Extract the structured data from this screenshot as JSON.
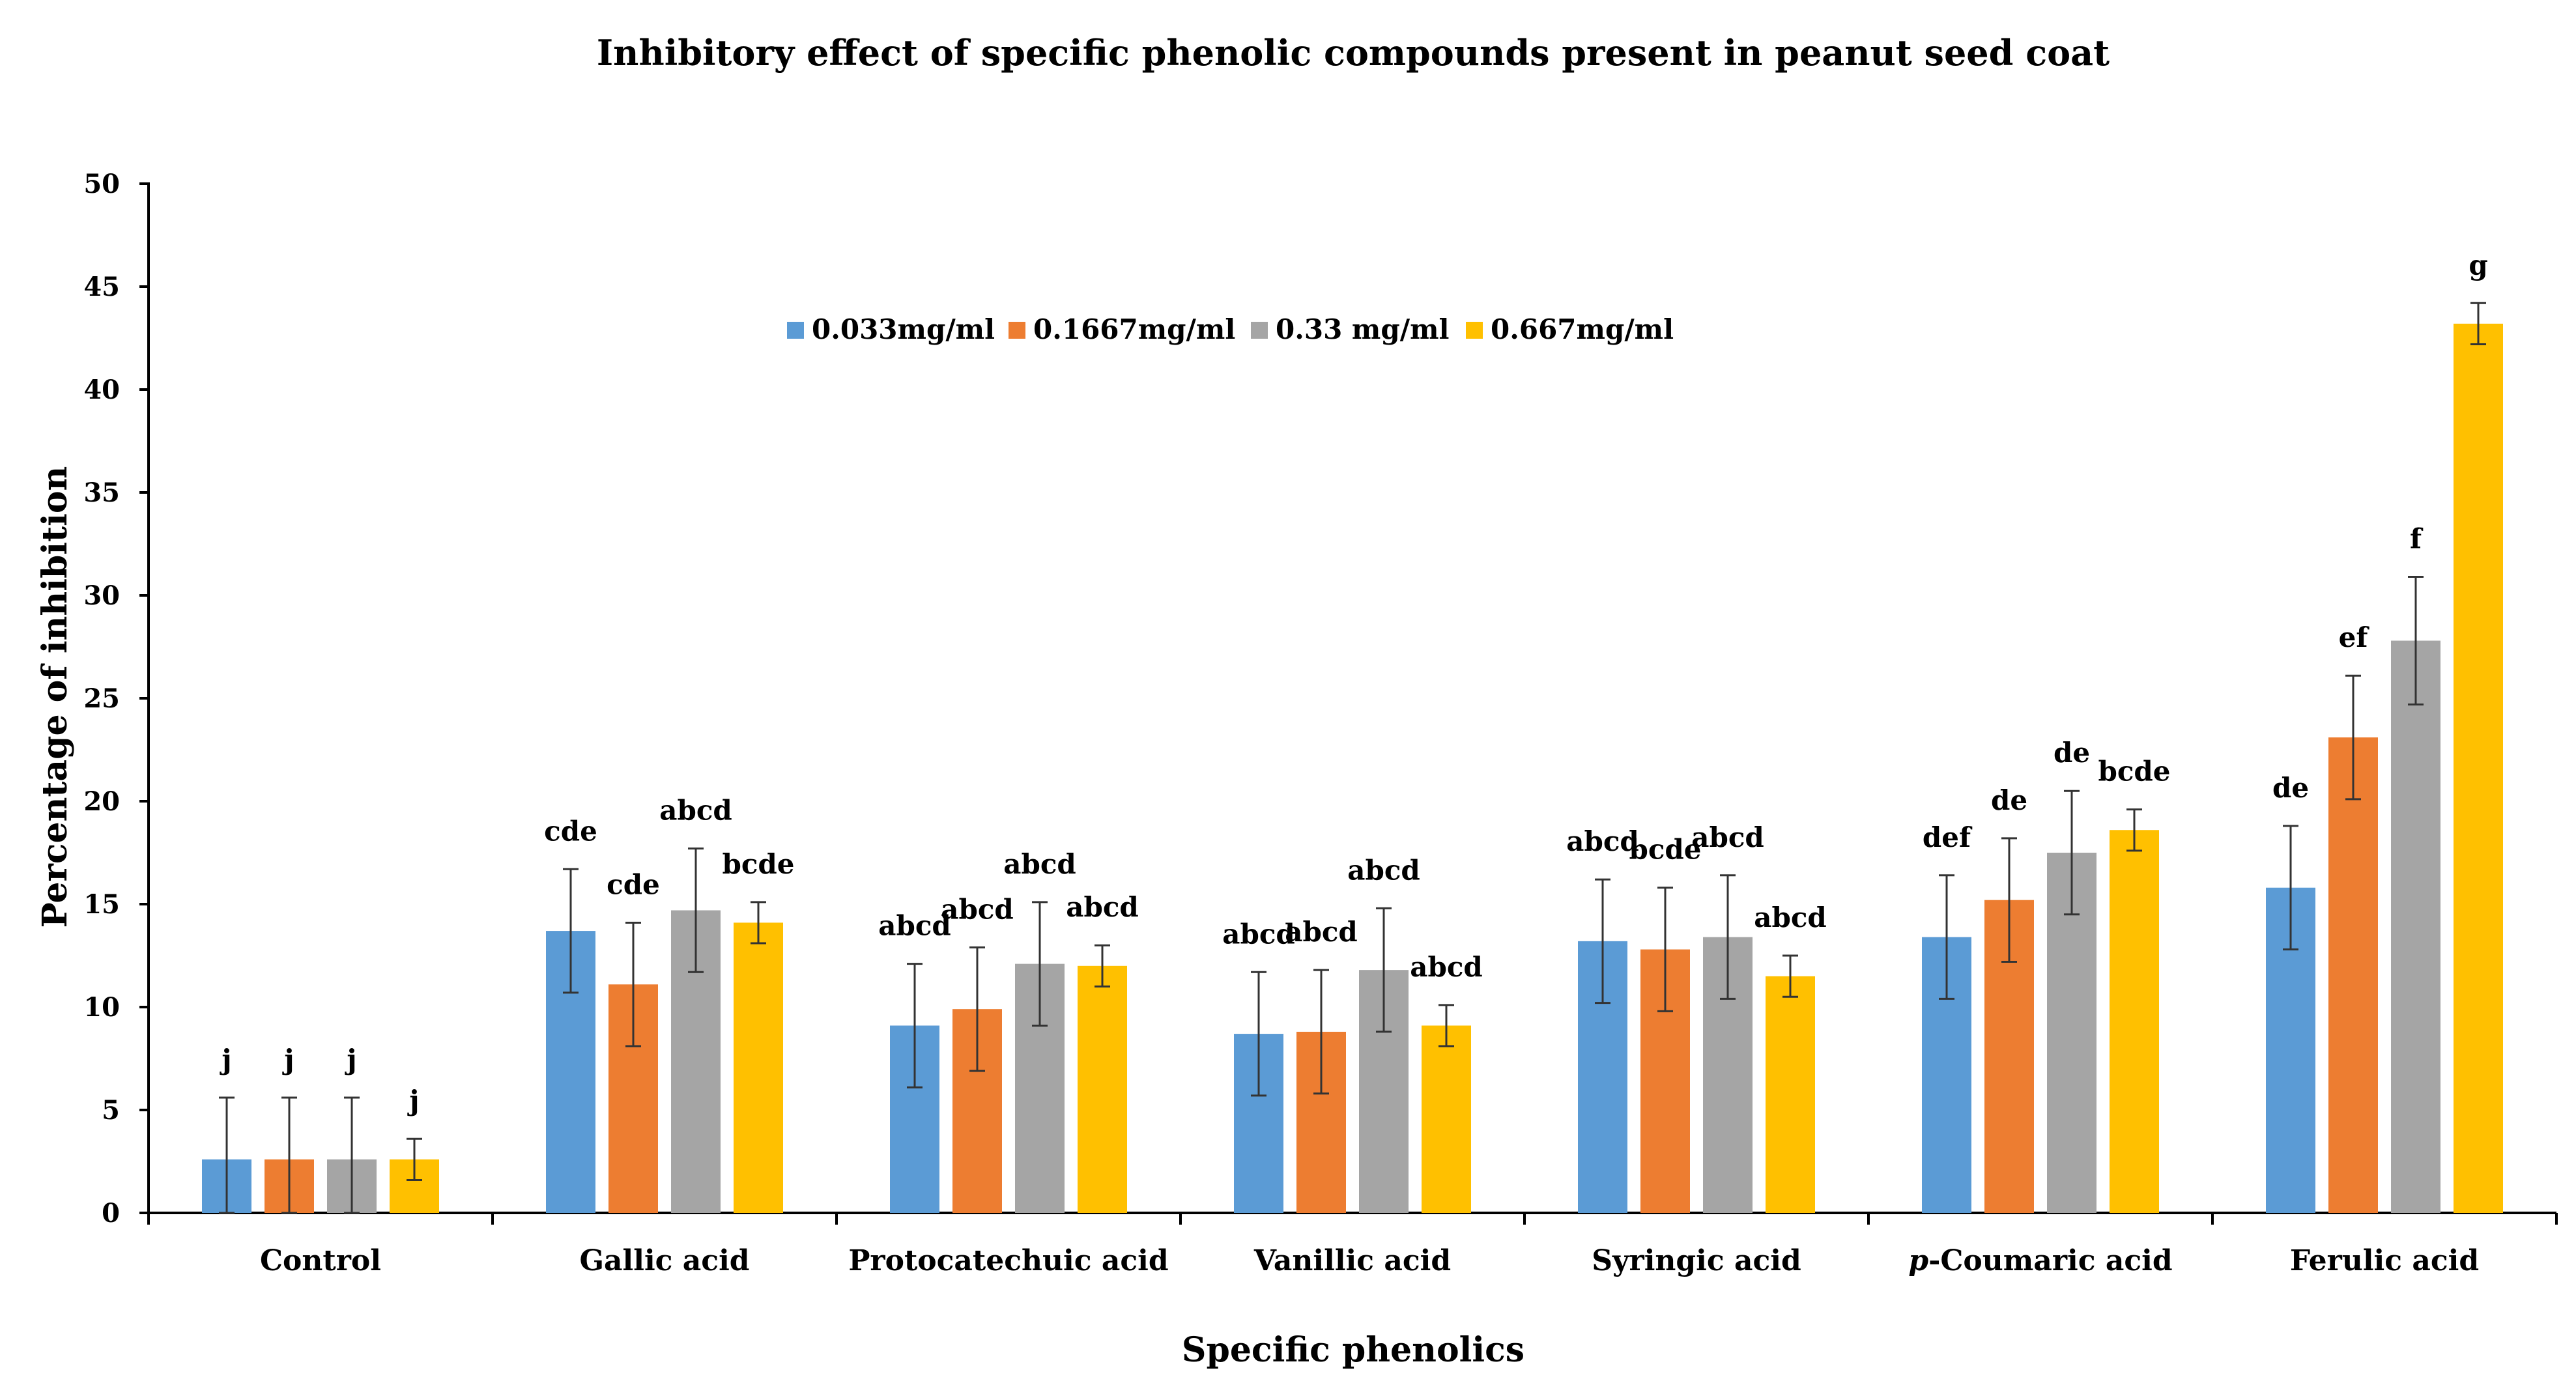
{
  "chart_data": {
    "type": "bar",
    "title": "Inhibitory effect of specific phenolic compounds present in peanut seed coat",
    "xlabel": "Specific phenolics",
    "ylabel": "Percentage of inhibition",
    "ylim": [
      0,
      50
    ],
    "yticks": [
      0,
      5,
      10,
      15,
      20,
      25,
      30,
      35,
      40,
      45,
      50
    ],
    "legend_position": "top-center",
    "categories": [
      "Control",
      "Gallic acid",
      "Protocatechuic acid",
      "Vanillic acid",
      "Syringic acid",
      "p-Coumaric acid",
      "Ferulic acid"
    ],
    "category_labels": [
      {
        "prefix": "",
        "italic": "",
        "rest": "Control"
      },
      {
        "prefix": "",
        "italic": "",
        "rest": "Gallic acid"
      },
      {
        "prefix": "",
        "italic": "",
        "rest": "Protocatechuic acid"
      },
      {
        "prefix": "",
        "italic": "",
        "rest": "Vanillic acid"
      },
      {
        "prefix": "",
        "italic": "",
        "rest": "Syringic acid"
      },
      {
        "prefix": "",
        "italic": "p",
        "rest": "-Coumaric acid"
      },
      {
        "prefix": "",
        "italic": "",
        "rest": "Ferulic acid"
      }
    ],
    "series": [
      {
        "name": "0.033mg/ml",
        "color": "#5B9BD5",
        "values": [
          2.6,
          13.7,
          9.1,
          8.7,
          13.2,
          13.4,
          15.8
        ],
        "errors": [
          3.0,
          3.0,
          3.0,
          3.0,
          3.0,
          3.0,
          3.0
        ],
        "sig": [
          "j",
          "cde",
          "abcd",
          "abcd",
          "abcd",
          "def",
          "de"
        ]
      },
      {
        "name": "0.1667mg/ml",
        "color": "#ED7D31",
        "values": [
          2.6,
          11.1,
          9.9,
          8.8,
          12.8,
          15.2,
          23.1
        ],
        "errors": [
          3.0,
          3.0,
          3.0,
          3.0,
          3.0,
          3.0,
          3.0
        ],
        "sig": [
          "j",
          "cde",
          "abcd",
          "abcd",
          "bcde",
          "de",
          "ef"
        ]
      },
      {
        "name": "0.33 mg/ml",
        "color": "#A5A5A5",
        "values": [
          2.6,
          14.7,
          12.1,
          11.8,
          13.4,
          17.5,
          27.8
        ],
        "errors": [
          3.0,
          3.0,
          3.0,
          3.0,
          3.0,
          3.0,
          3.1
        ],
        "sig": [
          "j",
          "abcd",
          "abcd",
          "abcd",
          "abcd",
          "de",
          "f"
        ]
      },
      {
        "name": "0.667mg/ml",
        "color": "#FFC000",
        "values": [
          2.6,
          14.1,
          12.0,
          9.1,
          11.5,
          18.6,
          43.2
        ],
        "errors": [
          1.0,
          1.0,
          1.0,
          1.0,
          1.0,
          1.0,
          1.0
        ],
        "sig": [
          "j",
          "bcde",
          "abcd",
          "abcd",
          "abcd",
          "bcde",
          "g"
        ]
      }
    ]
  }
}
